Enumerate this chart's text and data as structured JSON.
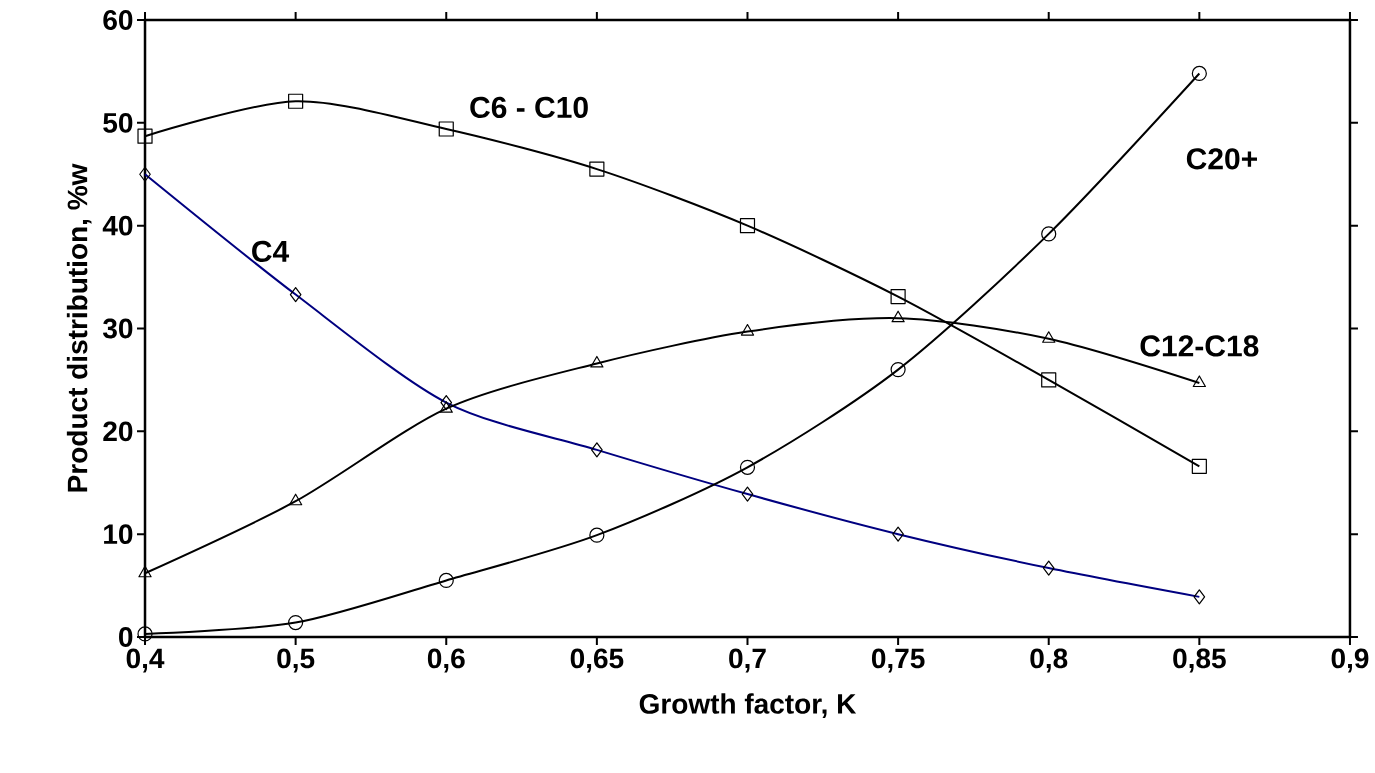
{
  "chart_data": {
    "type": "line",
    "xlabel": "Growth factor, K",
    "ylabel": "Product distribution, %w",
    "categories": [
      "0,4",
      "0,5",
      "0,6",
      "0,65",
      "0,7",
      "0,75",
      "0,8",
      "0,85",
      "0,9"
    ],
    "ylim": [
      0,
      60
    ],
    "yticks": [
      0,
      10,
      20,
      30,
      40,
      50,
      60
    ],
    "grid": false,
    "legend": false,
    "series": [
      {
        "name": "C6 - C10",
        "color": "#000000",
        "marker": "square",
        "values": [
          48.7,
          52.1,
          49.4,
          45.5,
          40,
          33.1,
          25,
          16.6,
          null
        ]
      },
      {
        "name": "C4",
        "color": "#000080",
        "marker": "diamond",
        "values": [
          45,
          33.3,
          22.8,
          18.2,
          13.9,
          10,
          6.7,
          3.9,
          null
        ]
      },
      {
        "name": "C12-C18",
        "color": "#000000",
        "marker": "triangle",
        "values": [
          6.2,
          13.2,
          22.2,
          26.6,
          29.7,
          31,
          29,
          24.7,
          null
        ]
      },
      {
        "name": "C20+",
        "color": "#000000",
        "marker": "circle",
        "values": [
          0.3,
          1.4,
          5.5,
          9.9,
          16.5,
          26,
          39.2,
          54.8,
          null
        ]
      }
    ]
  }
}
